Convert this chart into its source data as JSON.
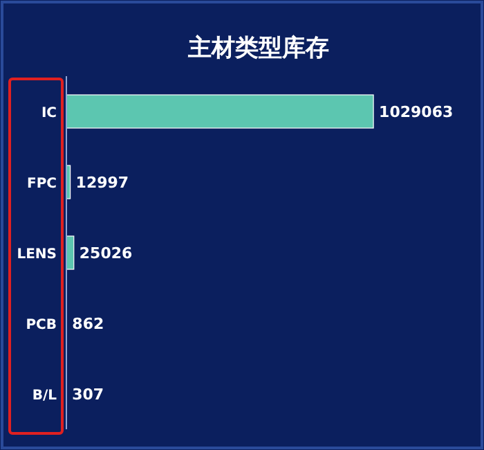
{
  "chart_data": {
    "type": "bar",
    "orientation": "horizontal",
    "title": "主材类型库存",
    "categories": [
      "IC",
      "FPC",
      "LENS",
      "PCB",
      "B/L"
    ],
    "series": [
      {
        "color": "#5cc6b0",
        "values": [
          1029063,
          12997,
          25026,
          862,
          307
        ]
      }
    ],
    "data_labels": true
  }
}
